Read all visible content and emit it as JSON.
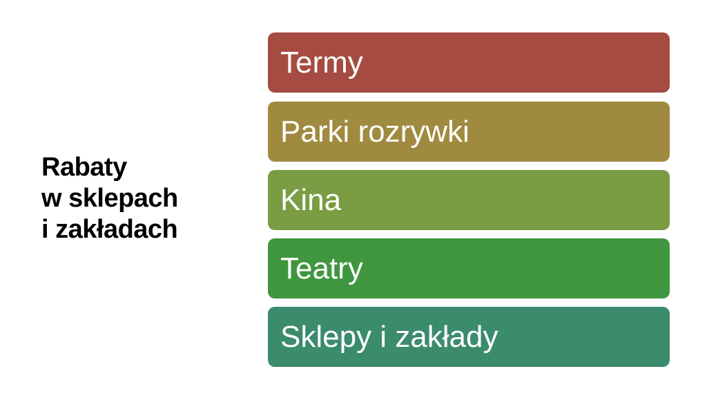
{
  "title": {
    "lines": [
      "Rabaty",
      "w sklepach",
      "i zakładach"
    ]
  },
  "items": [
    {
      "label": "Termy",
      "color": "#a54b41"
    },
    {
      "label": "Parki rozrywki",
      "color": "#9f8a3f"
    },
    {
      "label": "Kina",
      "color": "#7a9c42"
    },
    {
      "label": "Teatry",
      "color": "#3f963f"
    },
    {
      "label": "Sklepy i zakłady",
      "color": "#3b8b6d"
    }
  ]
}
